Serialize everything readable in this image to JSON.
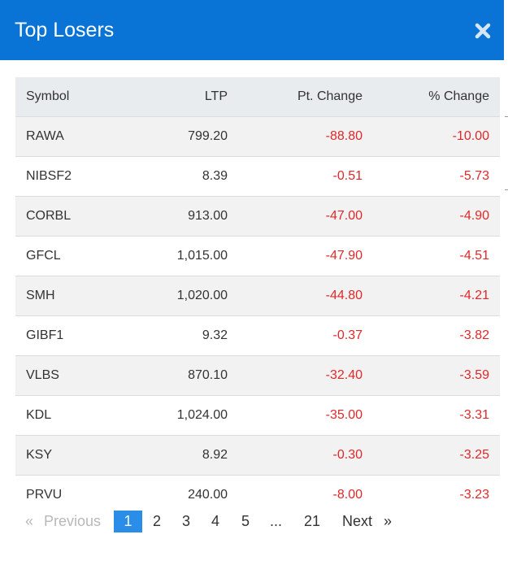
{
  "dialog": {
    "title": "Top Losers",
    "close_icon": "close-icon",
    "accent_color": "#0a74d6"
  },
  "table": {
    "columns": {
      "symbol": "Symbol",
      "ltp": "LTP",
      "pt_change": "Pt. Change",
      "pct_change": "% Change"
    },
    "negative_color": "#e0282a",
    "rows": [
      {
        "symbol": "RAWA",
        "ltp": "799.20",
        "pt_change": "-88.80",
        "pct_change": "-10.00"
      },
      {
        "symbol": "NIBSF2",
        "ltp": "8.39",
        "pt_change": "-0.51",
        "pct_change": "-5.73"
      },
      {
        "symbol": "CORBL",
        "ltp": "913.00",
        "pt_change": "-47.00",
        "pct_change": "-4.90"
      },
      {
        "symbol": "GFCL",
        "ltp": "1,015.00",
        "pt_change": "-47.90",
        "pct_change": "-4.51"
      },
      {
        "symbol": "SMH",
        "ltp": "1,020.00",
        "pt_change": "-44.80",
        "pct_change": "-4.21"
      },
      {
        "symbol": "GIBF1",
        "ltp": "9.32",
        "pt_change": "-0.37",
        "pct_change": "-3.82"
      },
      {
        "symbol": "VLBS",
        "ltp": "870.10",
        "pt_change": "-32.40",
        "pct_change": "-3.59"
      },
      {
        "symbol": "KDL",
        "ltp": "1,024.00",
        "pt_change": "-35.00",
        "pct_change": "-3.31"
      },
      {
        "symbol": "KSY",
        "ltp": "8.92",
        "pt_change": "-0.30",
        "pct_change": "-3.25"
      },
      {
        "symbol": "PRVU",
        "ltp": "240.00",
        "pt_change": "-8.00",
        "pct_change": "-3.23"
      }
    ]
  },
  "pagination": {
    "prev_arrow": "«",
    "previous": "Previous",
    "pages": [
      "1",
      "2",
      "3",
      "4",
      "5"
    ],
    "ellipsis": "...",
    "last_page": "21",
    "next": "Next",
    "next_arrow": "»",
    "current_page": "1"
  }
}
